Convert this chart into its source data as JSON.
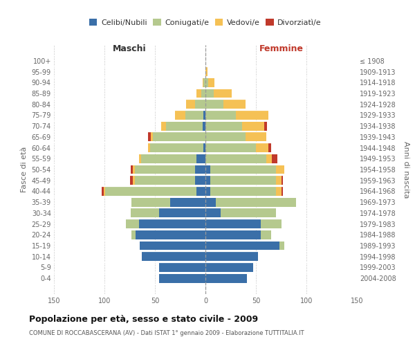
{
  "age_groups": [
    "100+",
    "95-99",
    "90-94",
    "85-89",
    "80-84",
    "75-79",
    "70-74",
    "65-69",
    "60-64",
    "55-59",
    "50-54",
    "45-49",
    "40-44",
    "35-39",
    "30-34",
    "25-29",
    "20-24",
    "15-19",
    "10-14",
    "5-9",
    "0-4"
  ],
  "birth_years": [
    "≤ 1908",
    "1909-1913",
    "1914-1918",
    "1919-1923",
    "1924-1928",
    "1929-1933",
    "1934-1938",
    "1939-1943",
    "1944-1948",
    "1949-1953",
    "1954-1958",
    "1959-1963",
    "1964-1968",
    "1969-1973",
    "1974-1978",
    "1979-1983",
    "1984-1988",
    "1989-1993",
    "1994-1998",
    "1999-2003",
    "2004-2008"
  ],
  "colors": {
    "celibe": "#3a6fa8",
    "coniugato": "#b5c98e",
    "vedovo": "#f5c155",
    "divorziato": "#c0392b"
  },
  "males": {
    "celibe": [
      0,
      0,
      0,
      0,
      0,
      2,
      3,
      0,
      2,
      9,
      10,
      10,
      9,
      35,
      46,
      66,
      69,
      65,
      63,
      46,
      46
    ],
    "coniugato": [
      0,
      0,
      2,
      4,
      10,
      18,
      36,
      52,
      53,
      55,
      60,
      60,
      90,
      38,
      28,
      13,
      4,
      0,
      0,
      0,
      0
    ],
    "vedovo": [
      0,
      0,
      1,
      5,
      9,
      10,
      5,
      2,
      2,
      2,
      2,
      2,
      2,
      0,
      0,
      0,
      0,
      0,
      0,
      0,
      0
    ],
    "divorziato": [
      0,
      0,
      0,
      0,
      0,
      0,
      0,
      3,
      0,
      0,
      2,
      3,
      2,
      0,
      0,
      0,
      0,
      0,
      0,
      0,
      0
    ]
  },
  "females": {
    "nubile": [
      0,
      0,
      0,
      0,
      0,
      0,
      0,
      0,
      0,
      0,
      5,
      5,
      5,
      10,
      15,
      55,
      55,
      73,
      52,
      47,
      41
    ],
    "coniugata": [
      0,
      0,
      3,
      8,
      18,
      30,
      36,
      40,
      50,
      60,
      65,
      65,
      65,
      80,
      55,
      20,
      10,
      5,
      0,
      0,
      0
    ],
    "vedova": [
      0,
      2,
      6,
      18,
      22,
      32,
      22,
      20,
      12,
      6,
      8,
      5,
      5,
      0,
      0,
      0,
      0,
      0,
      0,
      0,
      0
    ],
    "divorziata": [
      0,
      0,
      0,
      0,
      0,
      0,
      3,
      0,
      3,
      5,
      0,
      2,
      2,
      0,
      0,
      0,
      0,
      0,
      0,
      0,
      0
    ]
  },
  "title": "Popolazione per età, sesso e stato civile - 2009",
  "subtitle": "COMUNE DI ROCCABASCERANA (AV) - Dati ISTAT 1° gennaio 2009 - Elaborazione TUTTITALIA.IT",
  "label_maschi": "Maschi",
  "label_femmine": "Femmine",
  "ylabel_left": "Fasce di età",
  "ylabel_right": "Anni di nascita",
  "xlim": 150,
  "background": "#ffffff",
  "grid_color": "#cccccc",
  "legend_labels": [
    "Celibi/Nubili",
    "Coniugati/e",
    "Vedovi/e",
    "Divorziatì/e"
  ]
}
